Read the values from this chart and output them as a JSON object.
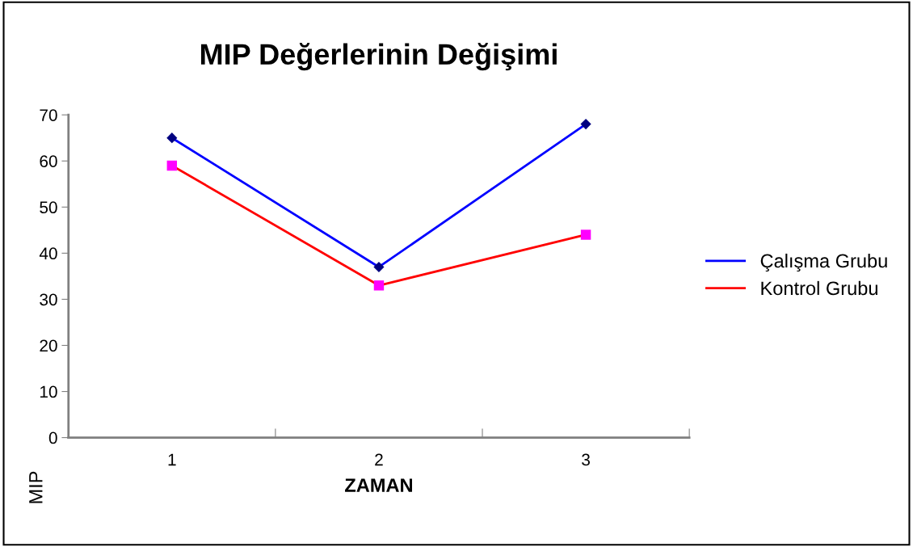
{
  "chart_data": {
    "type": "line",
    "title": "MIP Değerlerinin Değişimi",
    "xlabel": "ZAMAN",
    "ylabel": "MIP",
    "categories": [
      "1",
      "2",
      "3"
    ],
    "series": [
      {
        "name": "Çalışma Grubu",
        "color": "#0000ff",
        "marker": "diamond",
        "colors": [
          "#000080",
          "#000080",
          "#000080"
        ],
        "values": [
          65,
          37,
          68
        ]
      },
      {
        "name": "Kontrol Grubu",
        "color": "#ff0000",
        "marker": "square",
        "colors": [
          "#ff00ff",
          "#ff00ff",
          "#ff00ff"
        ],
        "values": [
          59,
          33,
          44
        ]
      }
    ],
    "ylim": [
      0,
      70
    ],
    "yticks": [
      0,
      10,
      20,
      30,
      40,
      50,
      60,
      70
    ],
    "grid": false,
    "legend": "right",
    "line_style": "solid"
  }
}
